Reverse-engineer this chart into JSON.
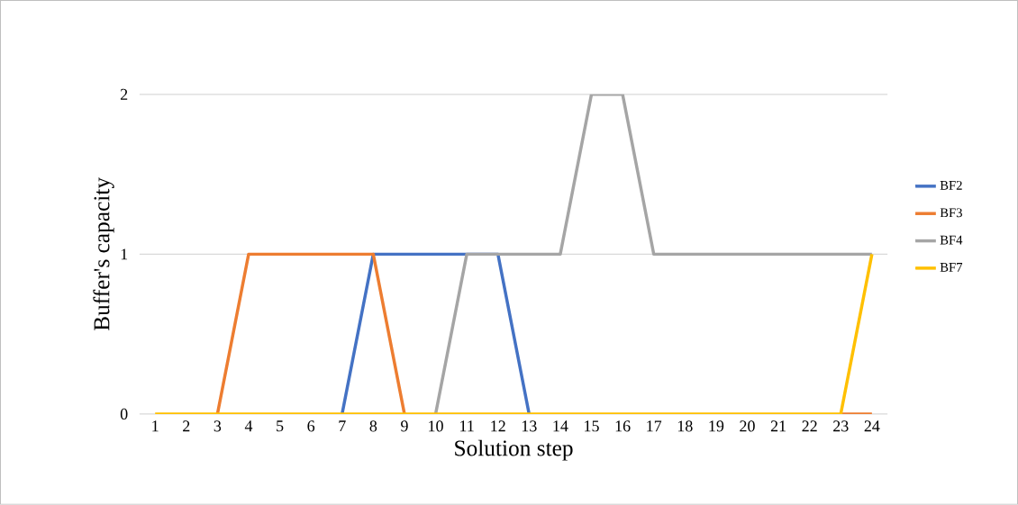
{
  "chart_data": {
    "type": "line",
    "xlabel": "Solution step",
    "ylabel": "Buffer's capacity",
    "categories": [
      "1",
      "2",
      "3",
      "4",
      "5",
      "6",
      "7",
      "8",
      "9",
      "10",
      "11",
      "12",
      "13",
      "14",
      "15",
      "16",
      "17",
      "18",
      "19",
      "20",
      "21",
      "22",
      "23",
      "24"
    ],
    "series": [
      {
        "name": "BF2",
        "color": "#4472c4",
        "values": [
          null,
          null,
          null,
          null,
          null,
          null,
          0,
          1,
          1,
          1,
          1,
          1,
          0,
          null,
          null,
          null,
          null,
          null,
          null,
          null,
          null,
          null,
          null,
          null
        ]
      },
      {
        "name": "BF3",
        "color": "#ed7d31",
        "values": [
          null,
          null,
          0,
          1,
          1,
          1,
          1,
          1,
          0,
          null,
          null,
          null,
          null,
          null,
          null,
          null,
          null,
          null,
          null,
          null,
          null,
          null,
          0,
          0
        ]
      },
      {
        "name": "BF4",
        "color": "#a5a5a5",
        "values": [
          null,
          null,
          null,
          null,
          null,
          null,
          null,
          null,
          null,
          0,
          1,
          1,
          1,
          1,
          2,
          2,
          1,
          1,
          1,
          1,
          1,
          1,
          1,
          1
        ]
      },
      {
        "name": "BF7",
        "color": "#ffc000",
        "values": [
          0,
          0,
          0,
          0,
          0,
          0,
          0,
          0,
          0,
          0,
          0,
          0,
          0,
          0,
          0,
          0,
          0,
          0,
          0,
          0,
          0,
          0,
          0,
          1
        ]
      }
    ],
    "ylim": [
      0,
      2
    ],
    "yticks": [
      0,
      1,
      2
    ],
    "grid": "y",
    "legend": "right",
    "marker": "none",
    "line_style": "solid"
  }
}
